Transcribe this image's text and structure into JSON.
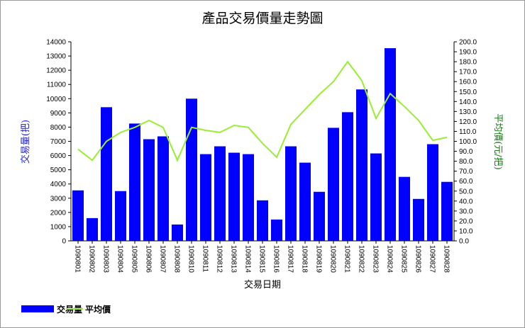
{
  "chart_data": {
    "type": "bar",
    "title": "產品交易價量走勢圖",
    "xlabel": "交易日期",
    "ylabel": "交易量(把)",
    "y2label": "平均價(元/把)",
    "ylim": [
      0,
      14000
    ],
    "y2lim": [
      0,
      200
    ],
    "categories": [
      "1090801",
      "1090802",
      "1090803",
      "1090804",
      "1090805",
      "1090806",
      "1090807",
      "1090808",
      "1090810",
      "1090811",
      "1090812",
      "1090813",
      "1090814",
      "1090815",
      "1090816",
      "1090817",
      "1090818",
      "1090819",
      "1090820",
      "1090821",
      "1090822",
      "1090823",
      "1090824",
      "1090825",
      "1090826",
      "1090827",
      "1090828"
    ],
    "series": [
      {
        "name": "交易量",
        "type": "bar",
        "axis": "left",
        "color": "#0000ff",
        "values": [
          3550,
          1600,
          9400,
          3500,
          8250,
          7150,
          7350,
          1150,
          10000,
          6100,
          6650,
          6200,
          6100,
          2850,
          1500,
          6650,
          5500,
          3450,
          7950,
          9050,
          10650,
          6150,
          13550,
          4500,
          2950,
          6800,
          4150
        ]
      },
      {
        "name": "平均價",
        "type": "line",
        "axis": "right",
        "color": "#99ee33",
        "values": [
          92,
          81,
          100,
          109,
          114,
          121,
          114,
          81,
          114,
          111,
          109,
          116,
          114,
          98,
          84,
          117,
          132,
          147,
          160,
          180,
          161,
          123,
          148,
          135,
          121,
          101,
          104
        ]
      }
    ],
    "legend": "bottom-left",
    "y_ticks": [
      "0",
      "1000",
      "2000",
      "3000",
      "4000",
      "5000",
      "6000",
      "7000",
      "8000",
      "9000",
      "10000",
      "11000",
      "12000",
      "13000",
      "14000"
    ],
    "y2_ticks": [
      "0.0",
      "10.0",
      "20.0",
      "30.0",
      "40.0",
      "50.0",
      "60.0",
      "70.0",
      "80.0",
      "90.0",
      "100.0",
      "110.0",
      "120.0",
      "130.0",
      "140.0",
      "150.0",
      "160.0",
      "170.0",
      "180.0",
      "190.0",
      "200.0"
    ]
  }
}
